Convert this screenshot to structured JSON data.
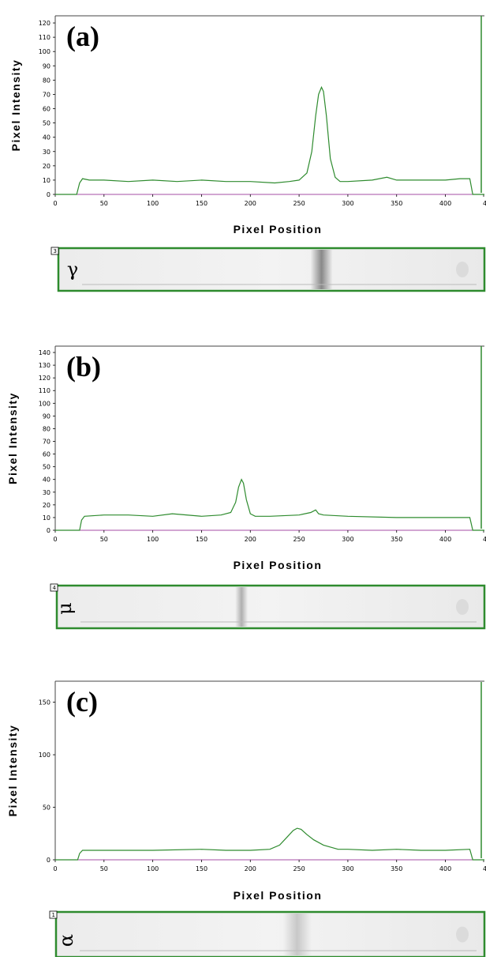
{
  "chart_data": [
    {
      "type": "line",
      "panel_label": "(a)",
      "xlabel": "Pixel Position",
      "ylabel": "Pixel Intensity",
      "xlim": [
        0,
        440
      ],
      "ylim": [
        0,
        125
      ],
      "x_ticks": [
        "0",
        "50",
        "100",
        "150",
        "200",
        "250",
        "300",
        "350",
        "400",
        "4"
      ],
      "y_ticks": [
        "0",
        "10",
        "20",
        "30",
        "40",
        "50",
        "60",
        "70",
        "80",
        "90",
        "100",
        "110",
        "120"
      ],
      "series": [
        {
          "color": "#2e8b2e",
          "x": [
            0,
            22,
            25,
            28,
            35,
            50,
            75,
            100,
            125,
            150,
            175,
            200,
            225,
            240,
            250,
            258,
            263,
            267,
            270,
            273,
            275,
            278,
            282,
            287,
            292,
            300,
            325,
            340,
            350,
            375,
            400,
            415,
            425,
            428,
            440
          ],
          "y": [
            0,
            0,
            8,
            11,
            10,
            10,
            9,
            10,
            9,
            10,
            9,
            9,
            8,
            9,
            10,
            15,
            30,
            55,
            70,
            75,
            72,
            55,
            25,
            12,
            9,
            9,
            10,
            12,
            10,
            10,
            10,
            11,
            11,
            0,
            0
          ]
        }
      ],
      "right_edge_label": "4",
      "lane_number": "3",
      "lane_label": "γ"
    },
    {
      "type": "line",
      "panel_label": "(b)",
      "xlabel": "Pixel Position",
      "ylabel": "Pixel Intensity",
      "xlim": [
        0,
        440
      ],
      "ylim": [
        0,
        145
      ],
      "x_ticks": [
        "0",
        "50",
        "100",
        "150",
        "200",
        "250",
        "300",
        "350",
        "400",
        "4"
      ],
      "y_ticks": [
        "0",
        "10",
        "20",
        "30",
        "40",
        "50",
        "60",
        "70",
        "80",
        "90",
        "100",
        "110",
        "120",
        "130",
        "140"
      ],
      "series": [
        {
          "color": "#2e8b2e",
          "x": [
            0,
            25,
            27,
            30,
            50,
            75,
            100,
            120,
            150,
            170,
            180,
            185,
            188,
            191,
            193,
            196,
            200,
            205,
            220,
            250,
            262,
            267,
            270,
            275,
            300,
            350,
            400,
            425,
            428,
            440
          ],
          "y": [
            0,
            0,
            8,
            11,
            12,
            12,
            11,
            13,
            11,
            12,
            14,
            22,
            34,
            40,
            37,
            24,
            13,
            11,
            11,
            12,
            14,
            16,
            13,
            12,
            11,
            10,
            10,
            10,
            0,
            0
          ]
        }
      ],
      "right_edge_label": "4",
      "lane_number": "4",
      "lane_label": "μ"
    },
    {
      "type": "line",
      "panel_label": "(c)",
      "xlabel": "Pixel Position",
      "ylabel": "Pixel Intensity",
      "xlim": [
        0,
        440
      ],
      "ylim": [
        0,
        170
      ],
      "x_ticks": [
        "0",
        "50",
        "100",
        "150",
        "200",
        "250",
        "300",
        "350",
        "400",
        "4"
      ],
      "y_ticks": [
        "0",
        "50",
        "100",
        "150"
      ],
      "series": [
        {
          "color": "#2e8b2e",
          "x": [
            0,
            23,
            25,
            28,
            50,
            100,
            150,
            175,
            200,
            220,
            230,
            238,
            244,
            248,
            252,
            258,
            265,
            275,
            290,
            300,
            325,
            350,
            375,
            400,
            425,
            428,
            440
          ],
          "y": [
            0,
            0,
            6,
            9,
            9,
            9,
            10,
            9,
            9,
            10,
            14,
            22,
            28,
            30,
            29,
            24,
            19,
            14,
            10,
            10,
            9,
            10,
            9,
            9,
            10,
            0,
            0
          ]
        }
      ],
      "right_edge_label": "4",
      "lane_number": "1",
      "lane_label": "α"
    }
  ]
}
